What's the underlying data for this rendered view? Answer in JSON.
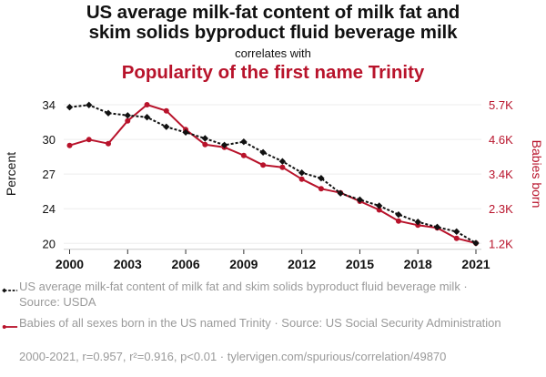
{
  "header": {
    "title_line1": "US average milk-fat content of milk fat and",
    "title_line2": "skim solids byproduct fluid beverage milk",
    "subtitle": "correlates with",
    "title2": "Popularity of the first name Trinity"
  },
  "colors": {
    "series1": "#111111",
    "series2": "#b8132b",
    "grid": "#eeeeee",
    "axis": "#cccccc",
    "muted_text": "#9a9a9a"
  },
  "chart_data": {
    "type": "line",
    "title": "US average milk-fat content of milk fat and skim solids byproduct fluid beverage milk correlates with Popularity of the first name Trinity",
    "x": [
      2000,
      2001,
      2002,
      2003,
      2004,
      2005,
      2006,
      2007,
      2008,
      2009,
      2010,
      2011,
      2012,
      2013,
      2014,
      2015,
      2016,
      2017,
      2018,
      2019,
      2020,
      2021
    ],
    "xlim": [
      2000,
      2021
    ],
    "x_ticks": [
      "2000",
      "2003",
      "2006",
      "2009",
      "2012",
      "2015",
      "2018",
      "2021"
    ],
    "x_tick_values": [
      2000,
      2003,
      2006,
      2009,
      2012,
      2015,
      2018,
      2021
    ],
    "ylabel_left": "Percent",
    "ylim_left": [
      20,
      34
    ],
    "y_ticks_left": [
      "34",
      "30",
      "27",
      "24",
      "20"
    ],
    "ylabel_right": "Babies born",
    "ylim_right": [
      1200,
      5700
    ],
    "y_ticks_right": [
      "5.7K",
      "4.6K",
      "3.4K",
      "2.3K",
      "1.2K"
    ],
    "grid": true,
    "series": [
      {
        "name": "US average milk-fat content of milk fat and skim solids byproduct fluid beverage milk",
        "axis": "left",
        "style": "dashed-diamond",
        "values": [
          33.75,
          33.97,
          33.15,
          32.92,
          32.74,
          31.77,
          31.21,
          30.6,
          29.93,
          30.26,
          29.19,
          28.28,
          27.13,
          26.58,
          25.06,
          24.41,
          23.8,
          22.91,
          22.17,
          21.65,
          21.19,
          20.03
        ]
      },
      {
        "name": "Babies of all sexes born in the US named Trinity",
        "axis": "right",
        "style": "solid-circle",
        "values": [
          4379,
          4568,
          4438,
          5177,
          5700,
          5502,
          4893,
          4409,
          4320,
          4054,
          3741,
          3670,
          3286,
          2973,
          2843,
          2568,
          2287,
          1927,
          1791,
          1702,
          1365,
          1209
        ]
      }
    ],
    "legend": [
      "US average milk-fat content of milk fat and skim solids byproduct fluid beverage milk · Source: USDA",
      "Babies of all sexes born in the US named Trinity · Source: US Social Security Administration"
    ],
    "legend_position": "bottom",
    "annotation": "2000-2021, r=0.957, r²=0.916, p<0.01 · tylervigen.com/spurious/correlation/49870"
  }
}
